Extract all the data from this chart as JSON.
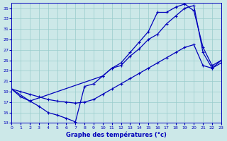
{
  "title": "Graphe des températures (°c)",
  "bg_color": "#cce8e8",
  "line_color": "#0000bb",
  "grid_color": "#99cccc",
  "ylim": [
    13,
    36
  ],
  "xlim": [
    0,
    23
  ],
  "yticks": [
    13,
    15,
    17,
    19,
    21,
    23,
    25,
    27,
    29,
    31,
    33,
    35
  ],
  "xticks": [
    0,
    1,
    2,
    3,
    4,
    5,
    6,
    7,
    8,
    9,
    10,
    11,
    12,
    13,
    14,
    15,
    16,
    17,
    18,
    19,
    20,
    21,
    22,
    23
  ],
  "series_wavy_x": [
    0,
    1,
    2,
    3,
    4,
    5,
    6,
    7,
    8,
    9,
    10,
    11,
    12,
    13,
    14,
    15,
    16,
    17,
    18,
    19,
    20,
    21,
    22,
    23
  ],
  "series_wavy_y": [
    19.5,
    18.0,
    17.2,
    16.2,
    15.0,
    14.5,
    13.9,
    13.2,
    20.0,
    20.5,
    22.0,
    23.5,
    24.0,
    25.8,
    27.2,
    29.0,
    30.0,
    32.0,
    33.5,
    35.0,
    35.5,
    26.5,
    23.5,
    24.5
  ],
  "series_steep_x": [
    0,
    2,
    10,
    11,
    12,
    13,
    14,
    15,
    16,
    17,
    18,
    19,
    20,
    21,
    22,
    23
  ],
  "series_steep_y": [
    19.5,
    17.2,
    22.0,
    23.5,
    24.5,
    26.5,
    28.5,
    30.5,
    34.2,
    34.2,
    35.2,
    35.8,
    34.5,
    27.5,
    24.0,
    25.0
  ],
  "series_shallow_x": [
    0,
    1,
    2,
    3,
    4,
    5,
    6,
    7,
    8,
    9,
    10,
    11,
    12,
    13,
    14,
    15,
    16,
    17,
    18,
    19,
    20,
    21,
    22,
    23
  ],
  "series_shallow_y": [
    19.5,
    19.0,
    18.5,
    18.0,
    17.5,
    17.2,
    17.0,
    16.8,
    17.0,
    17.5,
    18.5,
    19.5,
    20.5,
    21.5,
    22.5,
    23.5,
    24.5,
    25.5,
    26.5,
    27.5,
    28.0,
    24.0,
    23.5,
    25.0
  ]
}
